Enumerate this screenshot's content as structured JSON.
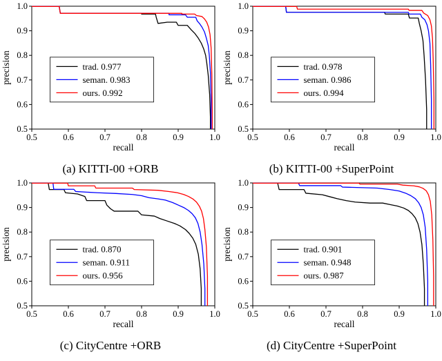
{
  "figure": {
    "xlabel": "recall",
    "ylabel": "precision"
  },
  "chart_data": [
    {
      "type": "line",
      "caption": "(a) KITTI-00 +ORB",
      "xlabel": "recall",
      "ylabel": "precision",
      "xlim": [
        0.5,
        1.0
      ],
      "ylim": [
        0.5,
        1.0
      ],
      "xticks": [
        0.5,
        0.6,
        0.7,
        0.8,
        0.9,
        1.0
      ],
      "yticks": [
        0.5,
        0.6,
        0.7,
        0.8,
        0.9,
        1.0
      ],
      "grid": false,
      "legend_position": "lower left",
      "legend": {
        "x": 0.1,
        "y": 0.22
      },
      "series": [
        {
          "name": "trad.",
          "auc": "0.977",
          "color": "#000000",
          "points": [
            [
              0.5,
              0.999
            ],
            [
              0.575,
              0.999
            ],
            [
              0.578,
              0.971
            ],
            [
              0.8,
              0.971
            ],
            [
              0.8,
              0.968
            ],
            [
              0.838,
              0.968
            ],
            [
              0.84,
              0.955
            ],
            [
              0.845,
              0.93
            ],
            [
              0.87,
              0.935
            ],
            [
              0.895,
              0.935
            ],
            [
              0.9,
              0.922
            ],
            [
              0.925,
              0.922
            ],
            [
              0.935,
              0.905
            ],
            [
              0.945,
              0.89
            ],
            [
              0.955,
              0.87
            ],
            [
              0.963,
              0.85
            ],
            [
              0.97,
              0.825
            ],
            [
              0.975,
              0.8
            ],
            [
              0.978,
              0.77
            ],
            [
              0.982,
              0.72
            ],
            [
              0.986,
              0.64
            ],
            [
              0.988,
              0.55
            ],
            [
              0.988,
              0.5
            ]
          ]
        },
        {
          "name": "seman.",
          "auc": "0.983",
          "color": "#0000ff",
          "points": [
            [
              0.5,
              0.999
            ],
            [
              0.575,
              0.999
            ],
            [
              0.578,
              0.971
            ],
            [
              0.875,
              0.971
            ],
            [
              0.875,
              0.965
            ],
            [
              0.92,
              0.965
            ],
            [
              0.925,
              0.955
            ],
            [
              0.948,
              0.955
            ],
            [
              0.952,
              0.94
            ],
            [
              0.958,
              0.93
            ],
            [
              0.965,
              0.915
            ],
            [
              0.972,
              0.895
            ],
            [
              0.977,
              0.87
            ],
            [
              0.982,
              0.84
            ],
            [
              0.985,
              0.8
            ],
            [
              0.988,
              0.73
            ],
            [
              0.99,
              0.62
            ],
            [
              0.99,
              0.5
            ]
          ]
        },
        {
          "name": "ours.",
          "auc": "0.992",
          "color": "#ff0000",
          "points": [
            [
              0.5,
              0.999
            ],
            [
              0.575,
              0.999
            ],
            [
              0.578,
              0.971
            ],
            [
              0.91,
              0.971
            ],
            [
              0.91,
              0.968
            ],
            [
              0.945,
              0.968
            ],
            [
              0.95,
              0.962
            ],
            [
              0.965,
              0.958
            ],
            [
              0.972,
              0.948
            ],
            [
              0.978,
              0.935
            ],
            [
              0.983,
              0.915
            ],
            [
              0.987,
              0.885
            ],
            [
              0.99,
              0.83
            ],
            [
              0.992,
              0.72
            ],
            [
              0.993,
              0.58
            ],
            [
              0.993,
              0.5
            ]
          ]
        }
      ]
    },
    {
      "type": "line",
      "caption": "(b) KITTI-00 +SuperPoint",
      "xlabel": "recall",
      "ylabel": "precision",
      "xlim": [
        0.5,
        1.0
      ],
      "ylim": [
        0.5,
        1.0
      ],
      "xticks": [
        0.5,
        0.6,
        0.7,
        0.8,
        0.9,
        1.0
      ],
      "yticks": [
        0.5,
        0.6,
        0.7,
        0.8,
        0.9,
        1.0
      ],
      "grid": false,
      "legend_position": "lower left",
      "legend": {
        "x": 0.1,
        "y": 0.22
      },
      "series": [
        {
          "name": "trad.",
          "auc": "0.978",
          "color": "#000000",
          "points": [
            [
              0.5,
              0.999
            ],
            [
              0.59,
              0.999
            ],
            [
              0.592,
              0.975
            ],
            [
              0.86,
              0.975
            ],
            [
              0.862,
              0.968
            ],
            [
              0.925,
              0.968
            ],
            [
              0.928,
              0.952
            ],
            [
              0.952,
              0.952
            ],
            [
              0.955,
              0.93
            ],
            [
              0.96,
              0.9
            ],
            [
              0.965,
              0.86
            ],
            [
              0.968,
              0.8
            ],
            [
              0.972,
              0.7
            ],
            [
              0.975,
              0.58
            ],
            [
              0.975,
              0.5
            ]
          ]
        },
        {
          "name": "seman.",
          "auc": "0.986",
          "color": "#0000ff",
          "points": [
            [
              0.5,
              0.999
            ],
            [
              0.59,
              0.999
            ],
            [
              0.592,
              0.975
            ],
            [
              0.925,
              0.975
            ],
            [
              0.927,
              0.968
            ],
            [
              0.958,
              0.968
            ],
            [
              0.962,
              0.955
            ],
            [
              0.97,
              0.945
            ],
            [
              0.976,
              0.925
            ],
            [
              0.98,
              0.9
            ],
            [
              0.984,
              0.85
            ],
            [
              0.986,
              0.76
            ],
            [
              0.988,
              0.62
            ],
            [
              0.988,
              0.5
            ]
          ]
        },
        {
          "name": "ours.",
          "auc": "0.994",
          "color": "#ff0000",
          "points": [
            [
              0.5,
              0.999
            ],
            [
              0.62,
              0.999
            ],
            [
              0.622,
              0.988
            ],
            [
              0.925,
              0.988
            ],
            [
              0.927,
              0.983
            ],
            [
              0.962,
              0.983
            ],
            [
              0.967,
              0.972
            ],
            [
              0.978,
              0.962
            ],
            [
              0.984,
              0.945
            ],
            [
              0.988,
              0.92
            ],
            [
              0.991,
              0.87
            ],
            [
              0.993,
              0.78
            ],
            [
              0.995,
              0.62
            ],
            [
              0.995,
              0.5
            ]
          ]
        }
      ]
    },
    {
      "type": "line",
      "caption": "(c) CityCentre +ORB",
      "xlabel": "recall",
      "ylabel": "precision",
      "xlim": [
        0.5,
        1.0
      ],
      "ylim": [
        0.5,
        1.0
      ],
      "xticks": [
        0.5,
        0.6,
        0.7,
        0.8,
        0.9,
        1.0
      ],
      "yticks": [
        0.5,
        0.6,
        0.7,
        0.8,
        0.9,
        1.0
      ],
      "grid": false,
      "legend_position": "lower left",
      "legend": {
        "x": 0.1,
        "y": 0.17
      },
      "series": [
        {
          "name": "trad.",
          "auc": "0.870",
          "color": "#000000",
          "points": [
            [
              0.5,
              0.999
            ],
            [
              0.545,
              0.999
            ],
            [
              0.548,
              0.973
            ],
            [
              0.588,
              0.973
            ],
            [
              0.592,
              0.96
            ],
            [
              0.625,
              0.955
            ],
            [
              0.645,
              0.945
            ],
            [
              0.65,
              0.928
            ],
            [
              0.7,
              0.928
            ],
            [
              0.705,
              0.91
            ],
            [
              0.715,
              0.895
            ],
            [
              0.725,
              0.885
            ],
            [
              0.79,
              0.885
            ],
            [
              0.8,
              0.87
            ],
            [
              0.835,
              0.865
            ],
            [
              0.85,
              0.855
            ],
            [
              0.87,
              0.845
            ],
            [
              0.89,
              0.835
            ],
            [
              0.905,
              0.825
            ],
            [
              0.92,
              0.81
            ],
            [
              0.93,
              0.795
            ],
            [
              0.94,
              0.775
            ],
            [
              0.948,
              0.75
            ],
            [
              0.955,
              0.71
            ],
            [
              0.96,
              0.65
            ],
            [
              0.963,
              0.57
            ],
            [
              0.963,
              0.5
            ]
          ]
        },
        {
          "name": "seman.",
          "auc": "0.911",
          "color": "#0000ff",
          "points": [
            [
              0.5,
              0.999
            ],
            [
              0.558,
              0.999
            ],
            [
              0.56,
              0.974
            ],
            [
              0.615,
              0.974
            ],
            [
              0.62,
              0.965
            ],
            [
              0.68,
              0.96
            ],
            [
              0.73,
              0.957
            ],
            [
              0.775,
              0.953
            ],
            [
              0.8,
              0.948
            ],
            [
              0.82,
              0.94
            ],
            [
              0.845,
              0.935
            ],
            [
              0.865,
              0.93
            ],
            [
              0.885,
              0.92
            ],
            [
              0.9,
              0.91
            ],
            [
              0.915,
              0.9
            ],
            [
              0.928,
              0.888
            ],
            [
              0.938,
              0.875
            ],
            [
              0.947,
              0.858
            ],
            [
              0.954,
              0.835
            ],
            [
              0.96,
              0.8
            ],
            [
              0.965,
              0.75
            ],
            [
              0.97,
              0.67
            ],
            [
              0.973,
              0.57
            ],
            [
              0.973,
              0.5
            ]
          ]
        },
        {
          "name": "ours.",
          "auc": "0.956",
          "color": "#ff0000",
          "points": [
            [
              0.5,
              0.999
            ],
            [
              0.598,
              0.999
            ],
            [
              0.6,
              0.988
            ],
            [
              0.672,
              0.988
            ],
            [
              0.675,
              0.979
            ],
            [
              0.775,
              0.979
            ],
            [
              0.78,
              0.973
            ],
            [
              0.845,
              0.97
            ],
            [
              0.875,
              0.965
            ],
            [
              0.898,
              0.96
            ],
            [
              0.915,
              0.953
            ],
            [
              0.928,
              0.945
            ],
            [
              0.94,
              0.935
            ],
            [
              0.95,
              0.922
            ],
            [
              0.958,
              0.905
            ],
            [
              0.964,
              0.885
            ],
            [
              0.969,
              0.855
            ],
            [
              0.973,
              0.81
            ],
            [
              0.977,
              0.74
            ],
            [
              0.98,
              0.62
            ],
            [
              0.98,
              0.5
            ]
          ]
        }
      ]
    },
    {
      "type": "line",
      "caption": "(d) CityCentre +SuperPoint",
      "xlabel": "recall",
      "ylabel": "precision",
      "xlim": [
        0.5,
        1.0
      ],
      "ylim": [
        0.5,
        1.0
      ],
      "xticks": [
        0.5,
        0.6,
        0.7,
        0.8,
        0.9,
        1.0
      ],
      "yticks": [
        0.5,
        0.6,
        0.7,
        0.8,
        0.9,
        1.0
      ],
      "grid": false,
      "legend_position": "lower left",
      "legend": {
        "x": 0.1,
        "y": 0.17
      },
      "series": [
        {
          "name": "trad.",
          "auc": "0.901",
          "color": "#000000",
          "points": [
            [
              0.5,
              0.999
            ],
            [
              0.568,
              0.999
            ],
            [
              0.572,
              0.973
            ],
            [
              0.64,
              0.973
            ],
            [
              0.645,
              0.958
            ],
            [
              0.69,
              0.952
            ],
            [
              0.71,
              0.944
            ],
            [
              0.73,
              0.936
            ],
            [
              0.755,
              0.928
            ],
            [
              0.78,
              0.922
            ],
            [
              0.82,
              0.918
            ],
            [
              0.855,
              0.918
            ],
            [
              0.875,
              0.912
            ],
            [
              0.895,
              0.906
            ],
            [
              0.912,
              0.898
            ],
            [
              0.925,
              0.888
            ],
            [
              0.935,
              0.875
            ],
            [
              0.944,
              0.858
            ],
            [
              0.951,
              0.835
            ],
            [
              0.957,
              0.8
            ],
            [
              0.962,
              0.75
            ],
            [
              0.966,
              0.67
            ],
            [
              0.969,
              0.57
            ],
            [
              0.969,
              0.5
            ]
          ]
        },
        {
          "name": "seman.",
          "auc": "0.948",
          "color": "#0000ff",
          "points": [
            [
              0.5,
              0.999
            ],
            [
              0.625,
              0.999
            ],
            [
              0.628,
              0.989
            ],
            [
              0.74,
              0.989
            ],
            [
              0.745,
              0.983
            ],
            [
              0.84,
              0.979
            ],
            [
              0.875,
              0.973
            ],
            [
              0.9,
              0.967
            ],
            [
              0.918,
              0.958
            ],
            [
              0.932,
              0.948
            ],
            [
              0.944,
              0.936
            ],
            [
              0.953,
              0.92
            ],
            [
              0.96,
              0.9
            ],
            [
              0.966,
              0.87
            ],
            [
              0.971,
              0.82
            ],
            [
              0.975,
              0.73
            ],
            [
              0.978,
              0.6
            ],
            [
              0.978,
              0.5
            ]
          ]
        },
        {
          "name": "ours.",
          "auc": "0.987",
          "color": "#ff0000",
          "points": [
            [
              0.5,
              0.999
            ],
            [
              0.79,
              0.999
            ],
            [
              0.793,
              0.995
            ],
            [
              0.895,
              0.995
            ],
            [
              0.91,
              0.991
            ],
            [
              0.94,
              0.988
            ],
            [
              0.955,
              0.984
            ],
            [
              0.965,
              0.978
            ],
            [
              0.974,
              0.968
            ],
            [
              0.98,
              0.952
            ],
            [
              0.985,
              0.925
            ],
            [
              0.989,
              0.87
            ],
            [
              0.992,
              0.77
            ],
            [
              0.994,
              0.62
            ],
            [
              0.994,
              0.5
            ]
          ]
        }
      ]
    }
  ]
}
